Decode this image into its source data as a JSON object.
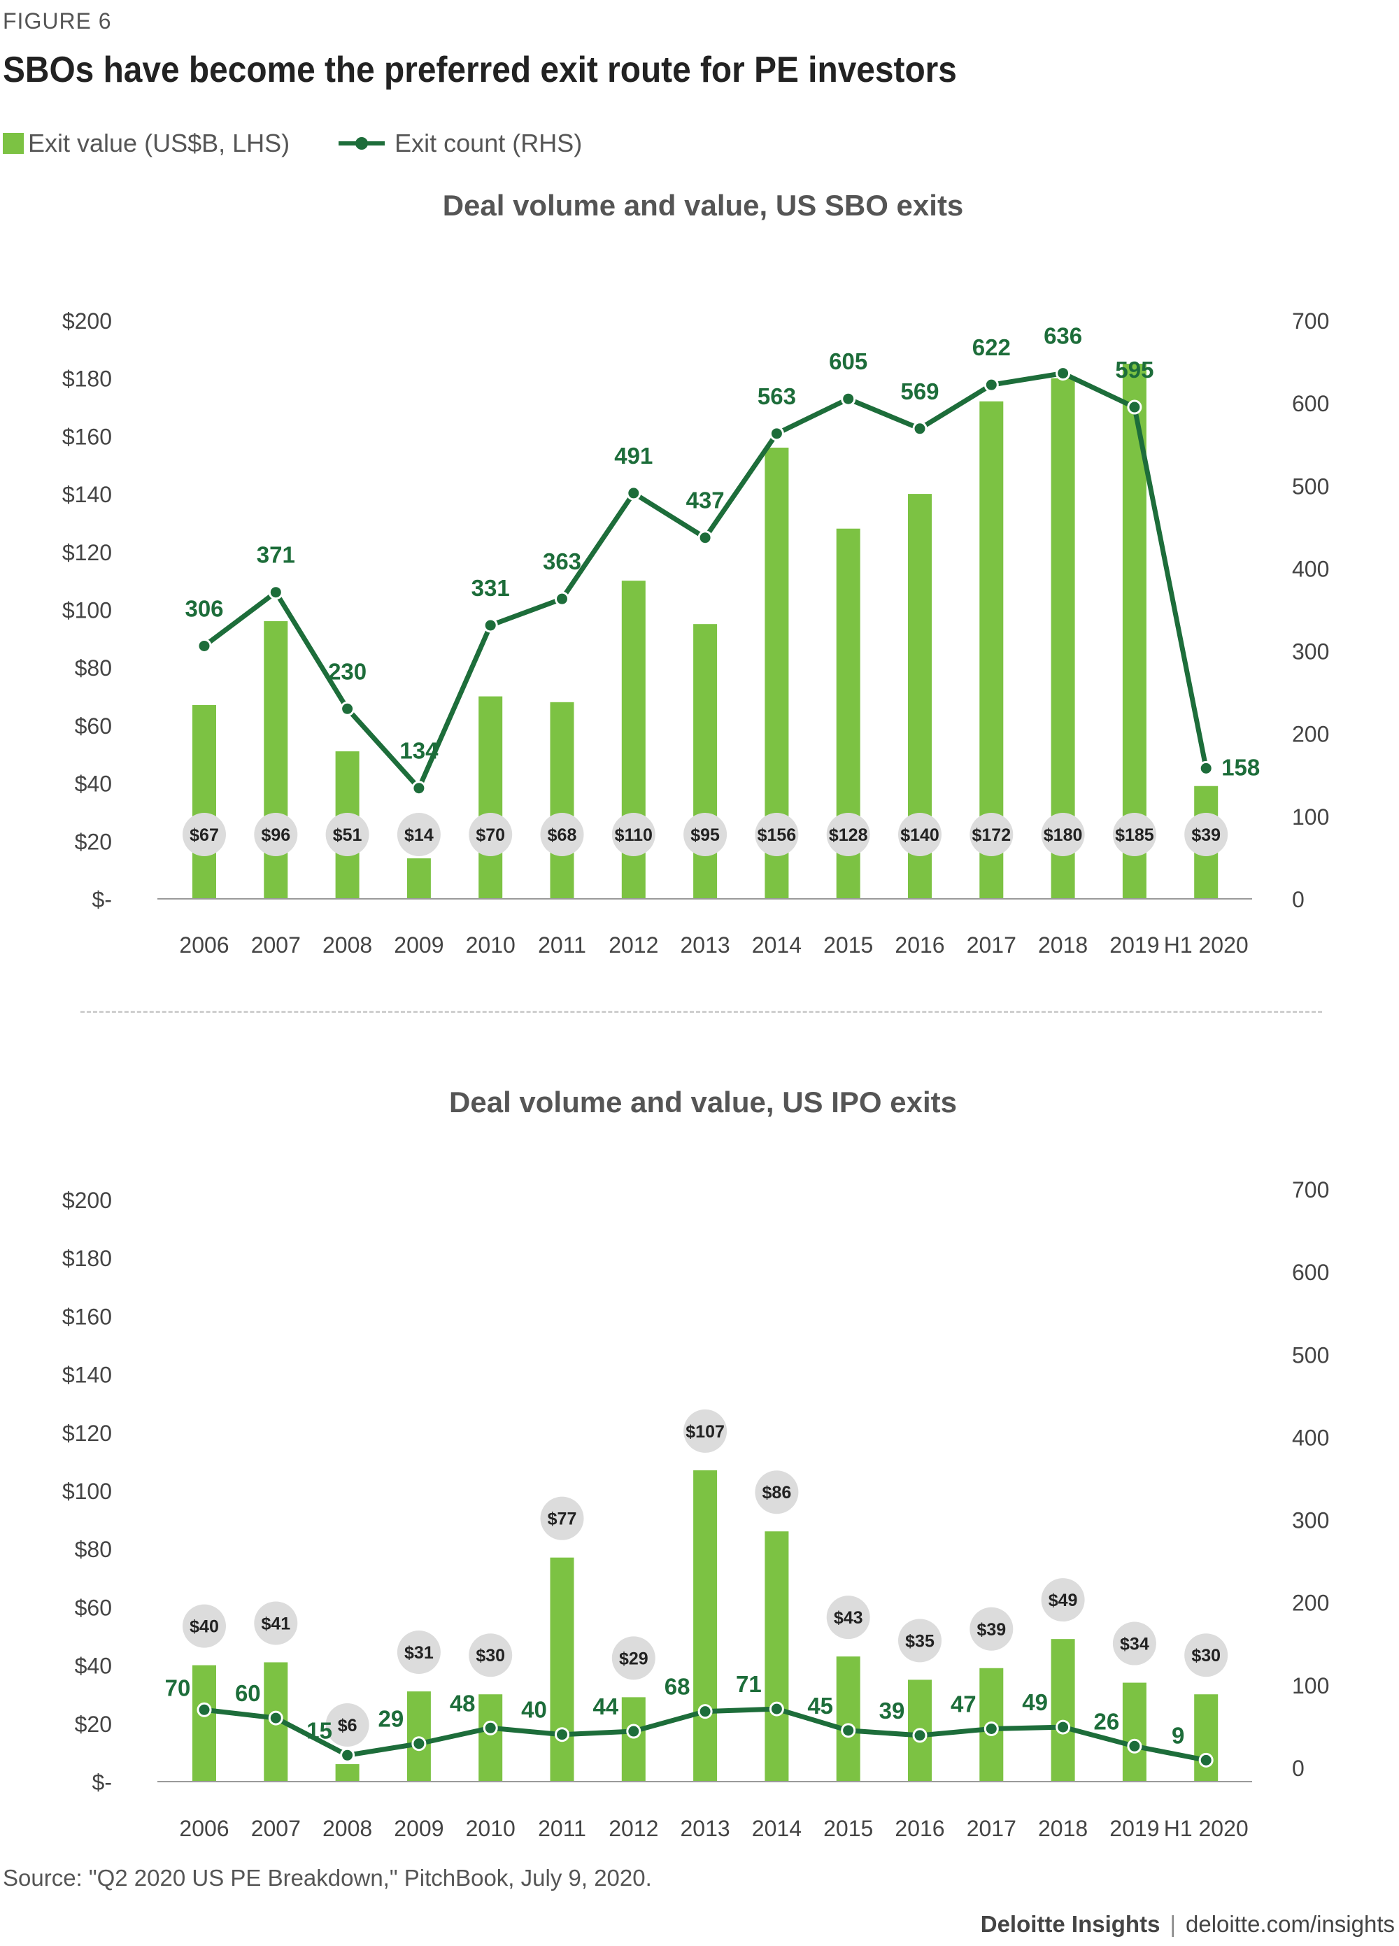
{
  "figure": {
    "label": "FIGURE 6",
    "title": "SBOs have become the preferred exit route for PE investors"
  },
  "legend": {
    "bar_label": "Exit value (US$B, LHS)",
    "line_label": "Exit count (RHS)"
  },
  "colors": {
    "bar": "#7cc243",
    "line": "#1d6d3a",
    "label_circle": "#dcdcdc",
    "axis_text": "#444444"
  },
  "chart_data": [
    {
      "type": "bar",
      "title": "Deal volume and value, US SBO exits",
      "categories": [
        "2006",
        "2007",
        "2008",
        "2009",
        "2010",
        "2011",
        "2012",
        "2013",
        "2014",
        "2015",
        "2016",
        "2017",
        "2018",
        "2019",
        "H1 2020"
      ],
      "series": [
        {
          "name": "Exit value (US$B, LHS)",
          "axis": "left",
          "type": "bar",
          "values": [
            67,
            96,
            51,
            14,
            70,
            68,
            110,
            95,
            156,
            128,
            140,
            172,
            180,
            185,
            39
          ],
          "labels": [
            "$67",
            "$96",
            "$51",
            "$14",
            "$70",
            "$68",
            "$110",
            "$95",
            "$156",
            "$128",
            "$140",
            "$172",
            "$180",
            "$185",
            "$39"
          ]
        },
        {
          "name": "Exit count (RHS)",
          "axis": "right",
          "type": "line",
          "values": [
            306,
            371,
            230,
            134,
            331,
            363,
            491,
            437,
            563,
            605,
            569,
            622,
            636,
            595,
            158
          ]
        }
      ],
      "ylim_left": [
        0,
        200
      ],
      "ylim_right": [
        0,
        700
      ],
      "left_ticks": [
        "$-",
        "$20",
        "$40",
        "$60",
        "$80",
        "$100",
        "$120",
        "$140",
        "$160",
        "$180",
        "$200"
      ],
      "right_ticks": [
        "0",
        "100",
        "200",
        "300",
        "400",
        "500",
        "600",
        "700"
      ],
      "bar_label_position": "bottom"
    },
    {
      "type": "bar",
      "title": "Deal volume and value, US IPO exits",
      "categories": [
        "2006",
        "2007",
        "2008",
        "2009",
        "2010",
        "2011",
        "2012",
        "2013",
        "2014",
        "2015",
        "2016",
        "2017",
        "2018",
        "2019",
        "H1 2020"
      ],
      "series": [
        {
          "name": "Exit value (US$B, LHS)",
          "axis": "left",
          "type": "bar",
          "values": [
            40,
            41,
            6,
            31,
            30,
            77,
            29,
            107,
            86,
            43,
            35,
            39,
            49,
            34,
            30
          ],
          "labels": [
            "$40",
            "$41",
            "$6",
            "$31",
            "$30",
            "$77",
            "$29",
            "$107",
            "$86",
            "$43",
            "$35",
            "$39",
            "$49",
            "$34",
            "$30"
          ]
        },
        {
          "name": "Exit count (RHS)",
          "axis": "right",
          "type": "line",
          "values": [
            70,
            60,
            15,
            29,
            48,
            40,
            44,
            68,
            71,
            45,
            39,
            47,
            49,
            26,
            9
          ]
        }
      ],
      "ylim_left": [
        0,
        200
      ],
      "ylim_right": [
        0,
        700
      ],
      "left_ticks": [
        "$-",
        "$20",
        "$40",
        "$60",
        "$80",
        "$100",
        "$120",
        "$140",
        "$160",
        "$180",
        "$200"
      ],
      "right_ticks": [
        "0",
        "100",
        "200",
        "300",
        "400",
        "500",
        "600",
        "700"
      ],
      "bar_label_position": "top"
    }
  ],
  "source": "Source: \"Q2 2020 US PE Breakdown,\" PitchBook, July 9, 2020.",
  "brand": {
    "name": "Deloitte Insights",
    "separator": "|",
    "url": "deloitte.com/insights"
  }
}
